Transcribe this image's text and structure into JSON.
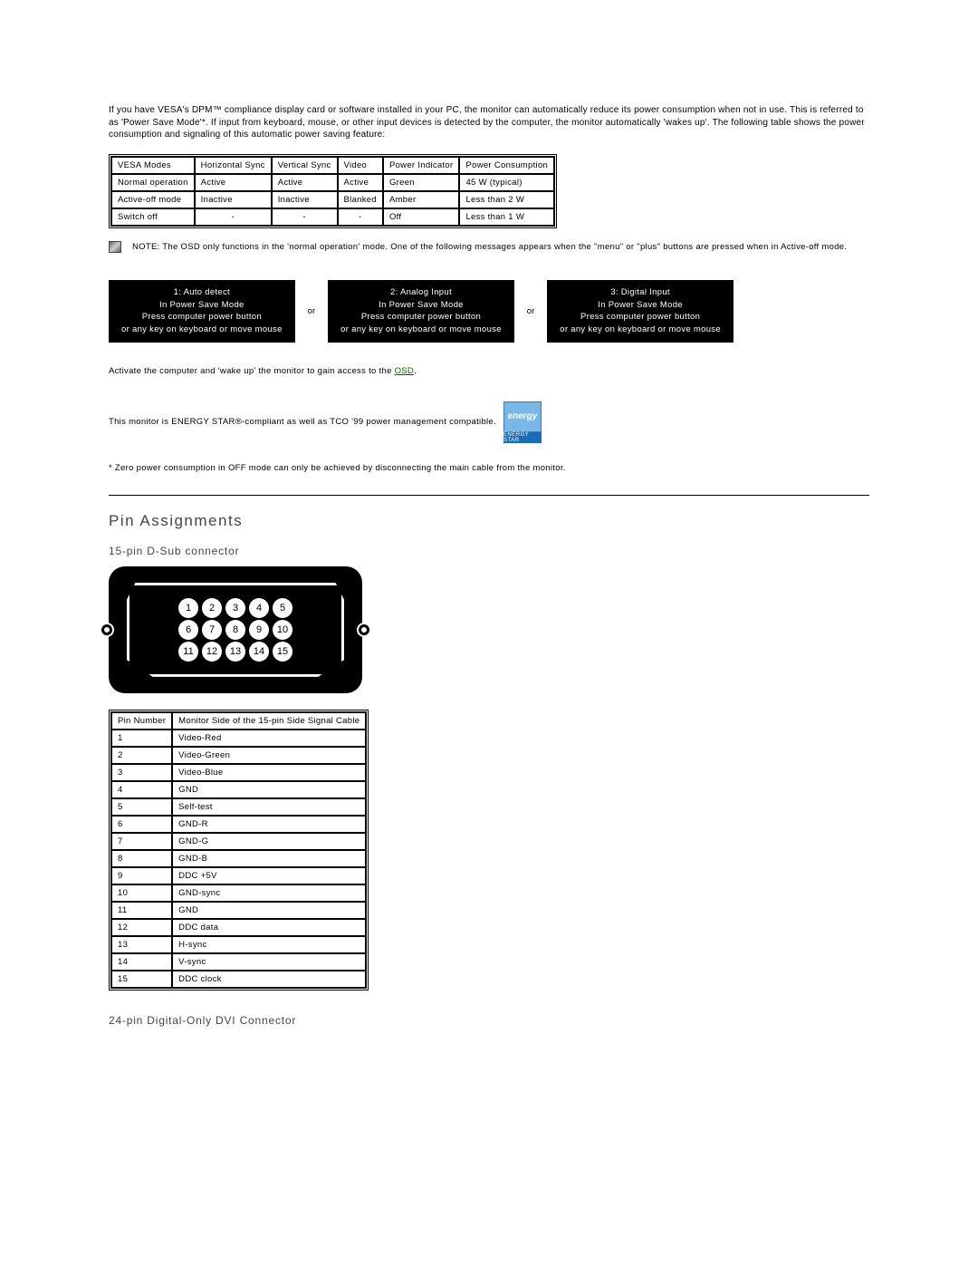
{
  "intro": "If you have VESA's DPM™ compliance display card or software installed in your PC, the monitor can automatically reduce its power consumption when not in use. This is referred to as 'Power Save Mode'*. If input from keyboard, mouse, or other input devices is detected by the computer, the monitor automatically 'wakes up'. The following table shows the power consumption and signaling of this automatic power saving feature:",
  "power_table": {
    "headers": [
      "VESA Modes",
      "Horizontal Sync",
      "Vertical Sync",
      "Video",
      "Power Indicator",
      "Power Consumption"
    ],
    "rows": [
      [
        "Normal operation",
        "Active",
        "Active",
        "Active",
        "Green",
        "45 W (typical)"
      ],
      [
        "Active-off mode",
        "Inactive",
        "Inactive",
        "Blanked",
        "Amber",
        "Less than 2 W"
      ],
      [
        "Switch off",
        "-",
        "-",
        "-",
        "Off",
        "Less than 1 W"
      ]
    ]
  },
  "note": "NOTE: The OSD only functions in the 'normal operation' mode. One of the following messages appears when the \"menu\" or \"plus\" buttons are pressed when in Active-off mode.",
  "messages": {
    "box1": {
      "l1": "1: Auto detect",
      "l2": "In Power Save Mode",
      "l3": "Press computer power button",
      "l4": "or any key on keyboard or move mouse"
    },
    "or": "or",
    "box2": {
      "l1": "2: Analog Input",
      "l2": "In Power Save Mode",
      "l3": "Press computer power button",
      "l4": "or any key on keyboard or move mouse"
    },
    "box3": {
      "l1": "3: Digital Input",
      "l2": "In Power Save Mode",
      "l3": "Press computer power button",
      "l4": "or any key on keyboard or move mouse"
    }
  },
  "activate_pre": "Activate the computer and 'wake up' the monitor to gain access to the ",
  "activate_link": "OSD",
  "activate_post": ".",
  "energy_text": "This monitor is ENERGY STAR®-compliant as well as TCO '99 power management compatible.",
  "energy_logo": {
    "top": "energy",
    "bottom": "ENERGY STAR"
  },
  "zero_note": "* Zero power consumption in OFF mode can only be achieved by disconnecting the main cable from the monitor.",
  "section_title": "Pin Assignments",
  "dsub_title": "15-pin D-Sub connector",
  "dsub_pins_row1": [
    "1",
    "2",
    "3",
    "4",
    "5"
  ],
  "dsub_pins_row2": [
    "6",
    "7",
    "8",
    "9",
    "10"
  ],
  "dsub_pins_row3": [
    "11",
    "12",
    "13",
    "14",
    "15"
  ],
  "pin_table": {
    "headers": [
      "Pin Number",
      "Monitor Side of the 15-pin Side Signal Cable"
    ],
    "rows": [
      [
        "1",
        "Video-Red"
      ],
      [
        "2",
        "Video-Green"
      ],
      [
        "3",
        "Video-Blue"
      ],
      [
        "4",
        "GND"
      ],
      [
        "5",
        "Self-test"
      ],
      [
        "6",
        "GND-R"
      ],
      [
        "7",
        "GND-G"
      ],
      [
        "8",
        "GND-B"
      ],
      [
        "9",
        "DDC +5V"
      ],
      [
        "10",
        "GND-sync"
      ],
      [
        "11",
        "GND"
      ],
      [
        "12",
        "DDC data"
      ],
      [
        "13",
        "H-sync"
      ],
      [
        "14",
        "V-sync"
      ],
      [
        "15",
        "DDC clock"
      ]
    ]
  },
  "dvi_title": "24-pin Digital-Only DVI Connector"
}
